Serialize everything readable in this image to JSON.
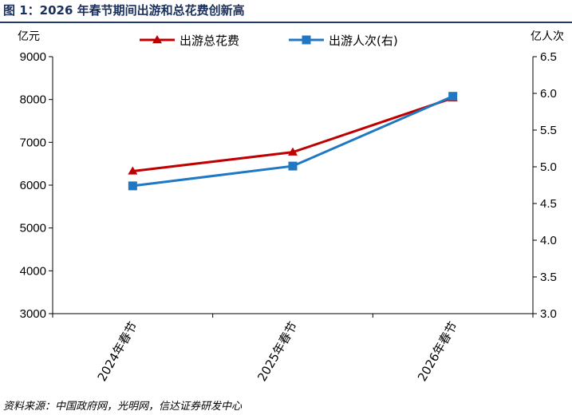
{
  "figure": {
    "title": "图 1：2026 年春节期间出游和总花费创新高",
    "source": "资料来源：中国政府网，光明网，信达证券研发中心"
  },
  "colors": {
    "spend": "#c00000",
    "trips": "#1f78c1",
    "title": "#1a2f5c"
  },
  "chart_data": {
    "type": "line",
    "categories": [
      "2024年春节",
      "2025年春节",
      "2026年春节"
    ],
    "left_axis": {
      "unit": "亿元",
      "ylim": [
        3000,
        9000
      ],
      "ticks": [
        "3000",
        "4000",
        "5000",
        "6000",
        "7000",
        "8000",
        "9000"
      ]
    },
    "right_axis": {
      "unit": "亿人次",
      "ylim": [
        3.0,
        6.5
      ],
      "ticks": [
        "3.0",
        "3.5",
        "4.0",
        "4.5",
        "5.0",
        "5.5",
        "6.0",
        "6.5"
      ]
    },
    "series": [
      {
        "name": "出游总花费",
        "axis": "left",
        "marker": "triangle",
        "values": [
          6327,
          6770,
          8035
        ]
      },
      {
        "name": "出游人次(右)",
        "axis": "right",
        "marker": "square",
        "values": [
          4.74,
          5.01,
          5.96
        ]
      }
    ],
    "grid": false,
    "legend": "top"
  }
}
